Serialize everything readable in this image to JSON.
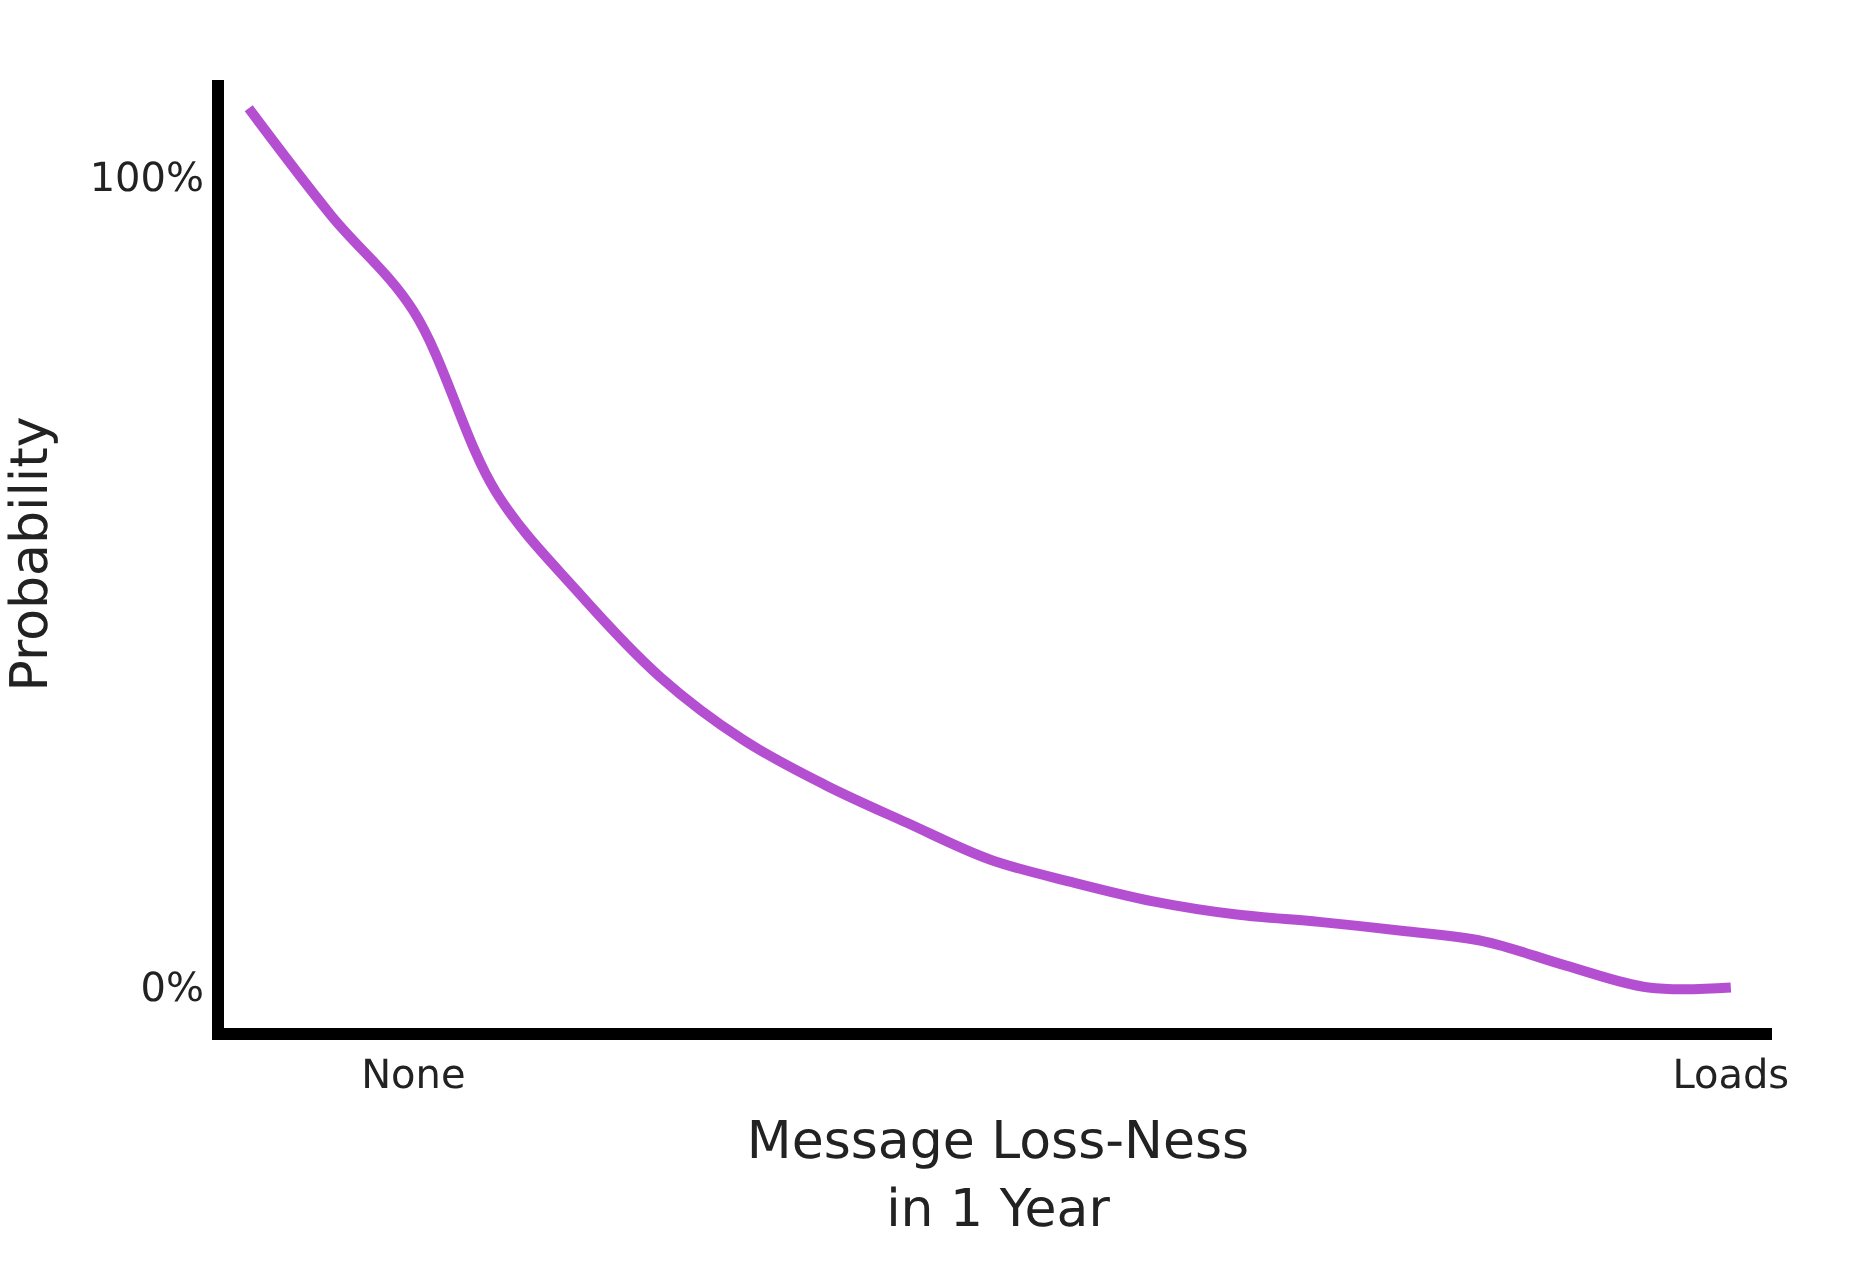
{
  "chart_data": {
    "type": "line",
    "xlabel": "Message Loss-Ness\nin 1 Year",
    "ylabel": "Probability",
    "categories": [
      null,
      null,
      "None",
      null,
      null,
      null,
      null,
      null,
      null,
      null,
      null,
      null,
      null,
      null,
      null,
      null,
      null,
      null,
      "Loads"
    ],
    "series": [
      {
        "color": "#b54fd1",
        "values": [
          108.5,
          95.3,
          83.5,
          61.2,
          48.8,
          38.3,
          30.6,
          25,
          20.3,
          15.8,
          13,
          10.6,
          9.0,
          8.1,
          7,
          5.7,
          2.7,
          0,
          0
        ]
      }
    ],
    "ylim": [
      -5,
      112
    ],
    "yticks": [
      {
        "value": 0,
        "label": "0%"
      },
      {
        "value": 100,
        "label": "100%"
      }
    ],
    "legend": false,
    "marker": "none",
    "line_style": "solid"
  }
}
